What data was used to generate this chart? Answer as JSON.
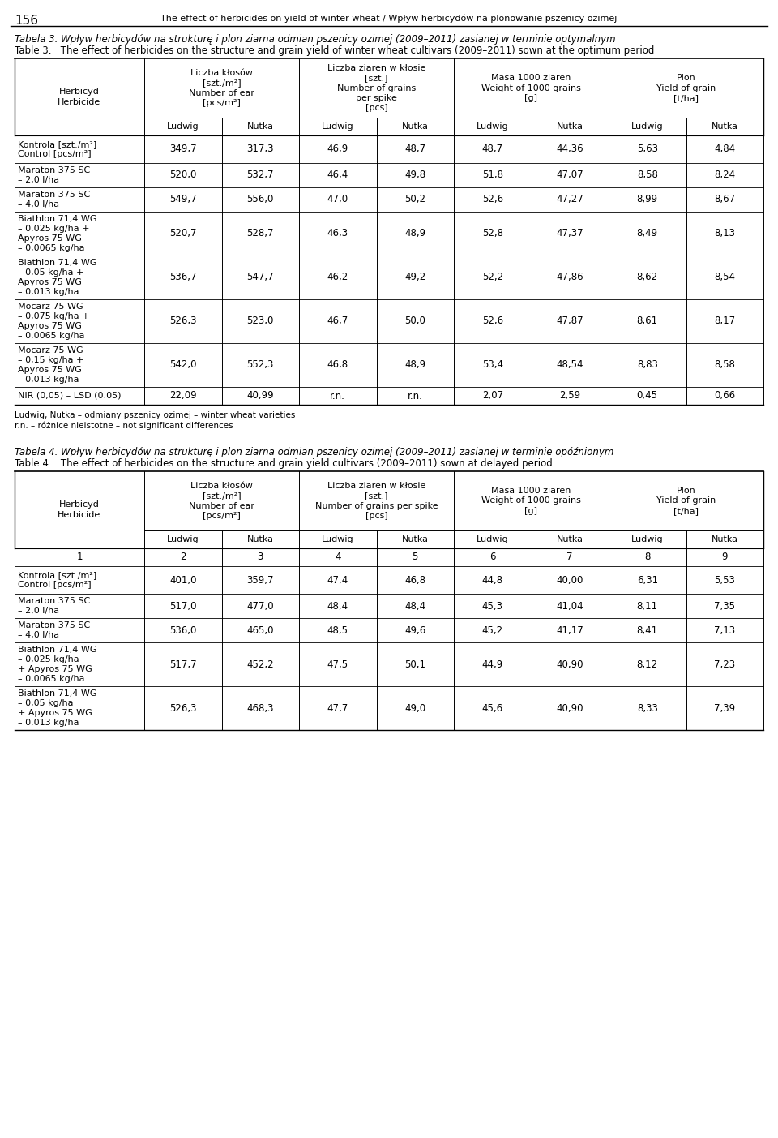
{
  "page_header": "156",
  "page_title": "The effect of herbicides on yield of winter wheat / Wpływ herbicydów na plonowanie pszenicy ozimej",
  "table3_title_pl": "Tabela 3. Wpływ herbicydów na strukturę i plon ziarna odmian pszenicy ozimej (2009–2011) zasianej w terminie optymalnym",
  "table3_title_en": "Table 3.   The effect of herbicides on the structure and grain yield of winter wheat cultivars (2009–2011) sown at the optimum period",
  "table4_title_pl": "Tabela 4. Wpływ herbicydów na strukturę i plon ziarna odmian pszenicy ozimej (2009–2011) zasianej w terminie opóźnionym",
  "table4_title_en": "Table 4.   The effect of herbicides on the structure and grain yield cultivars (2009–2011) sown at delayed period",
  "col_header_herb_pl": "Herbicyd",
  "col_header_herb_en": "Herbicide",
  "col_header_klosy": "Liczba kłosów\n[szt./m²]\nNumber of ear\n[pcs/m²]",
  "col_header_ziaren_t3": "Liczba ziaren w kłosie\n[szt.]\nNumber of grains\nper spike\n[pcs]",
  "col_header_ziaren_t4": "Liczba ziaren w kłosie\n[szt.]\nNumber of grains per spike\n[pcs]",
  "col_header_masa": "Masa 1000 ziaren\nWeight of 1000 grains\n[g]",
  "col_header_plon": "Plon\nYield of grain\n[t/ha]",
  "subheader_ludwig": "Ludwig",
  "subheader_nutka": "Nutka",
  "table3_rows": [
    {
      "herb": "Kontrola [szt./m²]\nControl [pcs/m²]",
      "v": [
        "349,7",
        "317,3",
        "46,9",
        "48,7",
        "48,7",
        "44,36",
        "5,63",
        "4,84"
      ],
      "rh": 34
    },
    {
      "herb": "Maraton 375 SC\n– 2,0 l/ha",
      "v": [
        "520,0",
        "532,7",
        "46,4",
        "49,8",
        "51,8",
        "47,07",
        "8,58",
        "8,24"
      ],
      "rh": 30
    },
    {
      "herb": "Maraton 375 SC\n– 4,0 l/ha",
      "v": [
        "549,7",
        "556,0",
        "47,0",
        "50,2",
        "52,6",
        "47,27",
        "8,99",
        "8,67"
      ],
      "rh": 30
    },
    {
      "herb": "Biathlon 71,4 WG\n– 0,025 kg/ha +\nApyros 75 WG\n– 0,0065 kg/ha",
      "v": [
        "520,7",
        "528,7",
        "46,3",
        "48,9",
        "52,8",
        "47,37",
        "8,49",
        "8,13"
      ],
      "rh": 54
    },
    {
      "herb": "Biathlon 71,4 WG\n– 0,05 kg/ha +\nApyros 75 WG\n– 0,013 kg/ha",
      "v": [
        "536,7",
        "547,7",
        "46,2",
        "49,2",
        "52,2",
        "47,86",
        "8,62",
        "8,54"
      ],
      "rh": 54
    },
    {
      "herb": "Mocarz 75 WG\n– 0,075 kg/ha +\nApyros 75 WG\n– 0,0065 kg/ha",
      "v": [
        "526,3",
        "523,0",
        "46,7",
        "50,0",
        "52,6",
        "47,87",
        "8,61",
        "8,17"
      ],
      "rh": 54
    },
    {
      "herb": "Mocarz 75 WG\n– 0,15 kg/ha +\nApyros 75 WG\n– 0,013 kg/ha",
      "v": [
        "542,0",
        "552,3",
        "46,8",
        "48,9",
        "53,4",
        "48,54",
        "8,83",
        "8,58"
      ],
      "rh": 54
    },
    {
      "herb": "NIR (0,05) – LSD (0.05)",
      "v": [
        "22,09",
        "40,99",
        "r.n.",
        "r.n.",
        "2,07",
        "2,59",
        "0,45",
        "0,66"
      ],
      "rh": 22
    }
  ],
  "table3_footnotes": [
    "Ludwig, Nutka – odmiany pszenicy ozimej – winter wheat varieties",
    "r.n. – różnice nieistotne – not significant differences"
  ],
  "table4_rows": [
    {
      "herb": "1",
      "v": [
        "2",
        "3",
        "4",
        "5",
        "6",
        "7",
        "8",
        "9"
      ],
      "rh": 22,
      "is_number_row": true
    },
    {
      "herb": "Kontrola [szt./m²]\nControl [pcs/m²]",
      "v": [
        "401,0",
        "359,7",
        "47,4",
        "46,8",
        "44,8",
        "40,00",
        "6,31",
        "5,53"
      ],
      "rh": 34
    },
    {
      "herb": "Maraton 375 SC\n– 2,0 l/ha",
      "v": [
        "517,0",
        "477,0",
        "48,4",
        "48,4",
        "45,3",
        "41,04",
        "8,11",
        "7,35"
      ],
      "rh": 30
    },
    {
      "herb": "Maraton 375 SC\n– 4,0 l/ha",
      "v": [
        "536,0",
        "465,0",
        "48,5",
        "49,6",
        "45,2",
        "41,17",
        "8,41",
        "7,13"
      ],
      "rh": 30
    },
    {
      "herb": "Biathlon 71,4 WG\n– 0,025 kg/ha\n+ Apyros 75 WG\n– 0,0065 kg/ha",
      "v": [
        "517,7",
        "452,2",
        "47,5",
        "50,1",
        "44,9",
        "40,90",
        "8,12",
        "7,23"
      ],
      "rh": 54
    },
    {
      "herb": "Biathlon 71,4 WG\n– 0,05 kg/ha\n+ Apyros 75 WG\n– 0,013 kg/ha",
      "v": [
        "526,3",
        "468,3",
        "47,7",
        "49,0",
        "45,6",
        "40,90",
        "8,33",
        "7,39"
      ],
      "rh": 54
    }
  ]
}
